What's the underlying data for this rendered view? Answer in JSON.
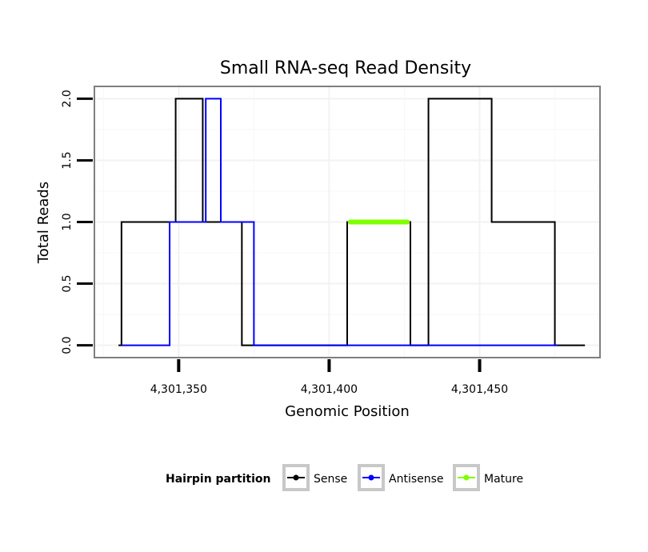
{
  "chart_data": {
    "type": "line",
    "title": "Small RNA-seq Read Density",
    "xlabel": "Genomic Position",
    "ylabel": "Total Reads",
    "xlim": [
      4301322,
      4301490
    ],
    "ylim": [
      -0.1,
      2.1
    ],
    "x_ticks": [
      4301350,
      4301400,
      4301450
    ],
    "x_tick_labels": [
      "4,301,350",
      "4,301,400",
      "4,301,450"
    ],
    "y_ticks": [
      0,
      0.5,
      1,
      1.5,
      2
    ],
    "y_tick_labels": [
      "0.0",
      "0.5",
      "1.0",
      "1.5",
      "2.0"
    ],
    "grid": true,
    "legend": {
      "position": "bottom",
      "title": "Hairpin partition",
      "entries": [
        "Sense",
        "Antisense",
        "Mature"
      ]
    },
    "series": [
      {
        "name": "Sense",
        "color": "#000000",
        "x": [
          4301330,
          4301331,
          4301331,
          4301348,
          4301348,
          4301349,
          4301349,
          4301357,
          4301357,
          4301358,
          4301358,
          4301370,
          4301370,
          4301371,
          4301371,
          4301405,
          4301405,
          4301406,
          4301406,
          4301426,
          4301426,
          4301427,
          4301427,
          4301432,
          4301432,
          4301433,
          4301433,
          4301453,
          4301453,
          4301454,
          4301454,
          4301474,
          4301474,
          4301475,
          4301475,
          4301485
        ],
        "y": [
          0,
          0,
          1,
          1,
          1,
          1,
          2,
          2,
          2,
          2,
          1,
          1,
          1,
          1,
          0,
          0,
          0,
          0,
          1,
          1,
          1,
          1,
          0,
          0,
          0,
          0,
          2,
          2,
          2,
          2,
          1,
          1,
          1,
          1,
          0,
          0
        ]
      },
      {
        "name": "Antisense",
        "color": "#0000ff",
        "x": [
          4301331,
          4301346,
          4301346,
          4301347,
          4301347,
          4301358,
          4301358,
          4301359,
          4301359,
          4301363,
          4301363,
          4301364,
          4301364,
          4301374,
          4301374,
          4301375,
          4301375,
          4301476
        ],
        "y": [
          0,
          0,
          0,
          0,
          1,
          1,
          1,
          1,
          2,
          2,
          2,
          2,
          1,
          1,
          1,
          1,
          0,
          0
        ]
      },
      {
        "name": "Mature",
        "color": "#7fff00",
        "x": [
          4301407,
          4301426
        ],
        "y": [
          1,
          1
        ]
      }
    ]
  }
}
